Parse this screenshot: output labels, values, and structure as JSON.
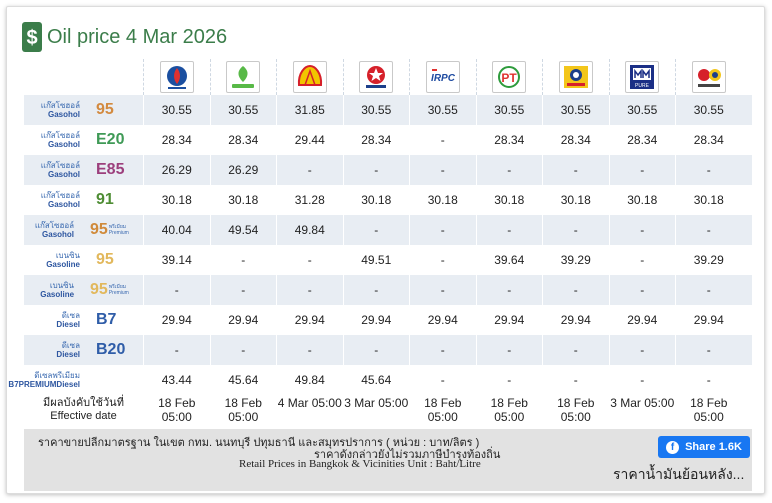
{
  "header": {
    "title": "Oil price 4 Mar 2026"
  },
  "brands": [
    {
      "name": "PTT Station",
      "icon": "ptt-logo-icon",
      "color": "#1b4fa0"
    },
    {
      "name": "Bangchak",
      "icon": "bangchak-logo-icon",
      "color": "#58b947"
    },
    {
      "name": "Shell",
      "icon": "shell-logo-icon",
      "color": "#f2c500"
    },
    {
      "name": "Caltex",
      "icon": "caltex-logo-icon",
      "color": "#d6202a"
    },
    {
      "name": "IRPC",
      "icon": "irpc-logo-icon",
      "color": "#1d4aa0"
    },
    {
      "name": "PT",
      "icon": "pt-logo-icon",
      "color": "#2e9b3c"
    },
    {
      "name": "Susco",
      "icon": "susco-logo-icon",
      "color": "#f3c61a"
    },
    {
      "name": "Pure",
      "icon": "pure-logo-icon",
      "color": "#1b2f86"
    },
    {
      "name": "Susco Dealer",
      "icon": "susco-dealer-logo-icon",
      "color": "#d6202a"
    }
  ],
  "rows": [
    {
      "th1": "แก๊สโซฮอล์",
      "th2": "Gasohol",
      "grade": "95",
      "prem": "",
      "cls": "g95",
      "prices": [
        "30.55",
        "30.55",
        "31.85",
        "30.55",
        "30.55",
        "30.55",
        "30.55",
        "30.55",
        "30.55"
      ]
    },
    {
      "th1": "แก๊สโซฮอล์",
      "th2": "Gasohol",
      "grade": "E20",
      "prem": "",
      "cls": "gE20",
      "prices": [
        "28.34",
        "28.34",
        "29.44",
        "28.34",
        "-",
        "28.34",
        "28.34",
        "28.34",
        "28.34"
      ]
    },
    {
      "th1": "แก๊สโซฮอล์",
      "th2": "Gasohol",
      "grade": "E85",
      "prem": "",
      "cls": "gE85",
      "prices": [
        "26.29",
        "26.29",
        "-",
        "-",
        "-",
        "-",
        "-",
        "-",
        "-"
      ]
    },
    {
      "th1": "แก๊สโซฮอล์",
      "th2": "Gasohol",
      "grade": "91",
      "prem": "",
      "cls": "g91",
      "prices": [
        "30.18",
        "30.18",
        "31.28",
        "30.18",
        "30.18",
        "30.18",
        "30.18",
        "30.18",
        "30.18"
      ]
    },
    {
      "th1": "แก๊สโซฮอล์",
      "th2": "Gasohol",
      "grade": "95",
      "prem": "พรีเมียม Premium",
      "cls": "gPremGasohol",
      "prices": [
        "40.04",
        "49.54",
        "49.84",
        "-",
        "-",
        "-",
        "-",
        "-",
        "-"
      ]
    },
    {
      "th1": "เบนซิน",
      "th2": "Gasoline",
      "grade": "95",
      "prem": "",
      "cls": "gGas95",
      "prices": [
        "39.14",
        "-",
        "-",
        "49.51",
        "-",
        "39.64",
        "39.29",
        "-",
        "39.29"
      ]
    },
    {
      "th1": "เบนซิน",
      "th2": "Gasoline",
      "grade": "95",
      "prem": "พรีเมียม Premium",
      "cls": "gGas95",
      "prices": [
        "-",
        "-",
        "-",
        "-",
        "-",
        "-",
        "-",
        "-",
        "-"
      ]
    },
    {
      "th1": "ดีเซล",
      "th2": "Diesel",
      "grade": "B7",
      "prem": "",
      "cls": "gB7",
      "prices": [
        "29.94",
        "29.94",
        "29.94",
        "29.94",
        "29.94",
        "29.94",
        "29.94",
        "29.94",
        "29.94"
      ]
    },
    {
      "th1": "ดีเซล",
      "th2": "Diesel",
      "grade": "B20",
      "prem": "",
      "cls": "gB20",
      "prices": [
        "-",
        "-",
        "-",
        "-",
        "-",
        "-",
        "-",
        "-",
        "-"
      ]
    },
    {
      "th1": "ดีเซลพรีเมียม",
      "th2": "B7PREMIUMDiesel",
      "grade": "",
      "prem": "",
      "cls": "gB7",
      "prices": [
        "43.44",
        "45.64",
        "49.84",
        "45.64",
        "-",
        "-",
        "-",
        "-",
        "-"
      ]
    }
  ],
  "effective": {
    "label_th": "มีผลบังคับใช้วันที่",
    "label_en": "Effective date",
    "dates": [
      [
        "18 Feb",
        "05:00"
      ],
      [
        "18 Feb",
        "05:00"
      ],
      [
        "4 Mar 05:00",
        ""
      ],
      [
        "3 Mar 05:00",
        ""
      ],
      [
        "18 Feb",
        "05:00"
      ],
      [
        "18 Feb",
        "05:00"
      ],
      [
        "18 Feb",
        "05:00"
      ],
      [
        "3 Mar 05:00",
        ""
      ],
      [
        "18 Feb",
        "05:00"
      ]
    ]
  },
  "footer": {
    "line1": "ราคาขายปลีกมาตรฐาน ในเขต กทม. นนทบุรี ปทุมธานี และสมุทรปราการ ( หน่วย : บาท/ลิตร )",
    "line2": "ราคาดังกล่าวยังไม่รวมภาษีบำรุงท้องถิ่น",
    "line3": "Retail Prices in Bangkok & Vicinities Unit : Baht/Litre",
    "share_label": "Share 1.6K",
    "history_link": "ราคาน้ำมันย้อนหลัง..."
  }
}
